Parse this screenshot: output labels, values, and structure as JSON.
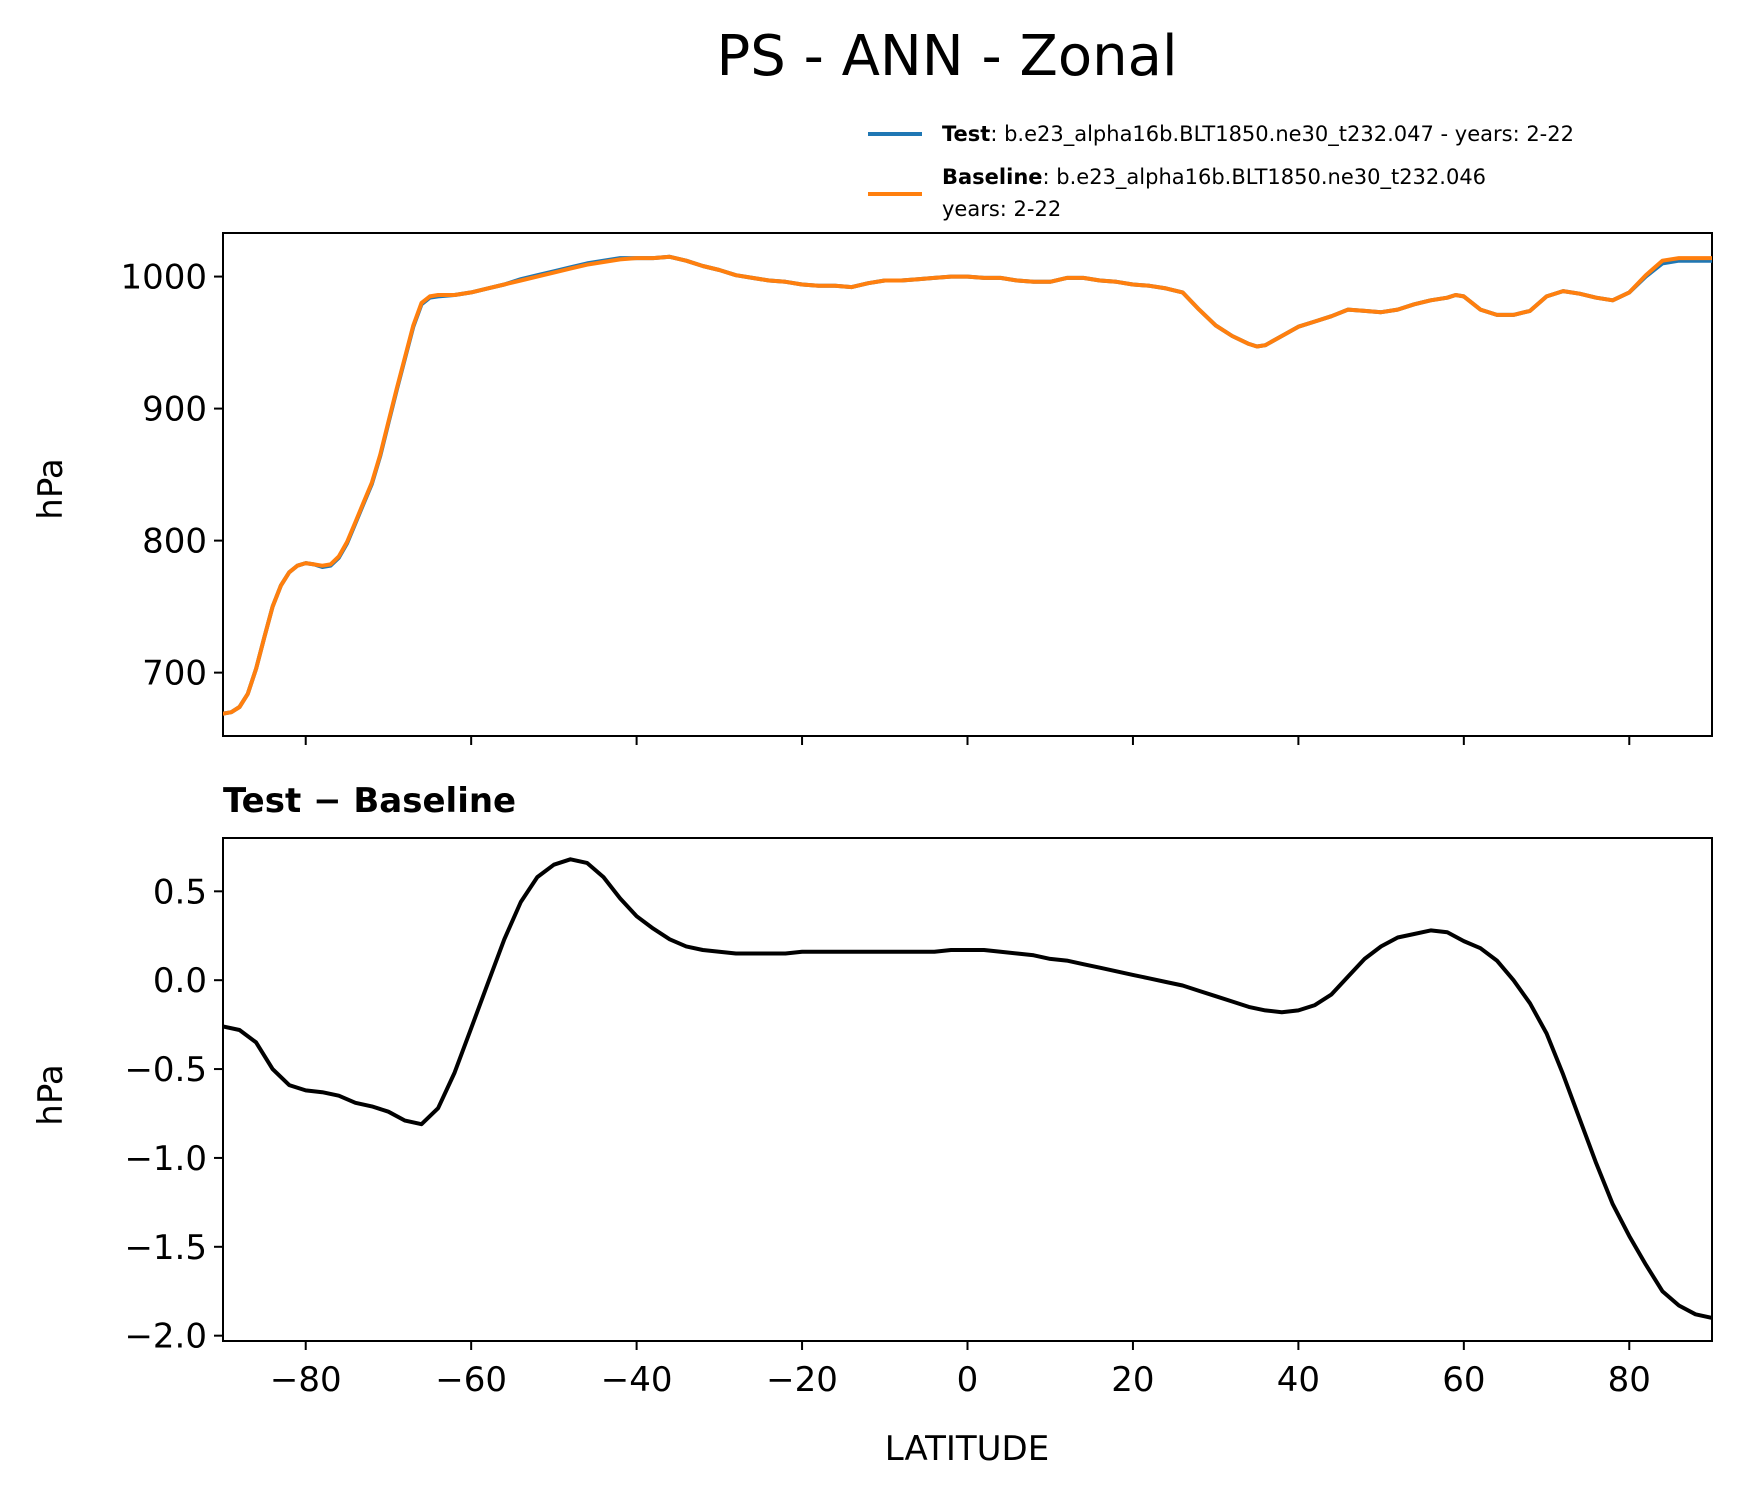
{
  "figure": {
    "title": "PS - ANN - Zonal",
    "colors": {
      "test": "#1f77b4",
      "baseline": "#ff7f0e",
      "diff": "#000000"
    }
  },
  "legend": {
    "test_label": "Test",
    "test_text": ": b.e23_alpha16b.BLT1850.ne30_t232.047 - years: 2-22",
    "baseline_label": "Baseline",
    "baseline_text": ": b.e23_alpha16b.BLT1850.ne30_t232.046",
    "baseline_text_line2": "years: 2-22"
  },
  "chart_data": [
    {
      "type": "line",
      "title": "",
      "xlabel": "",
      "ylabel": "hPa",
      "xlim": [
        -90,
        90
      ],
      "ylim": [
        652,
        1033
      ],
      "yticks": [
        700,
        800,
        900,
        1000
      ],
      "ytick_labels": [
        "700",
        "800",
        "900",
        "1000"
      ],
      "xticks": [
        -80,
        -60,
        -40,
        -20,
        0,
        20,
        40,
        60,
        80
      ],
      "legend_position": "top-right, above axes",
      "grid": false,
      "x": [
        -90,
        -89,
        -88,
        -87,
        -86,
        -85,
        -84,
        -83,
        -82,
        -81,
        -80,
        -79,
        -78,
        -77,
        -76,
        -75,
        -74,
        -73,
        -72,
        -71,
        -70,
        -69,
        -68,
        -67,
        -66,
        -65,
        -64,
        -62,
        -60,
        -58,
        -56,
        -54,
        -52,
        -50,
        -48,
        -46,
        -44,
        -42,
        -40,
        -38,
        -36,
        -34,
        -32,
        -30,
        -28,
        -26,
        -24,
        -22,
        -20,
        -18,
        -16,
        -14,
        -12,
        -10,
        -8,
        -6,
        -4,
        -2,
        0,
        2,
        4,
        6,
        8,
        10,
        12,
        14,
        16,
        18,
        20,
        22,
        24,
        26,
        28,
        30,
        32,
        34,
        35,
        36,
        38,
        40,
        42,
        44,
        46,
        48,
        50,
        52,
        54,
        56,
        58,
        59,
        60,
        62,
        64,
        66,
        68,
        70,
        72,
        74,
        76,
        78,
        80,
        82,
        84,
        86,
        88,
        90
      ],
      "series": [
        {
          "name": "Test",
          "values": [
            669,
            670,
            674,
            684,
            703,
            727,
            750,
            766,
            776,
            781,
            783,
            782,
            780,
            781,
            787,
            798,
            813,
            828,
            843,
            864,
            889,
            914,
            938,
            962,
            979,
            984,
            985,
            986,
            988,
            991,
            994,
            998,
            1001,
            1004,
            1007,
            1010,
            1012,
            1014,
            1014,
            1014,
            1015,
            1012,
            1008,
            1005,
            1001,
            999,
            997,
            996,
            994,
            993,
            993,
            992,
            995,
            997,
            997,
            998,
            999,
            1000,
            1000,
            999,
            999,
            997,
            996,
            996,
            999,
            999,
            997,
            996,
            994,
            993,
            991,
            988,
            975,
            963,
            955,
            949,
            947,
            948,
            955,
            962,
            966,
            970,
            975,
            974,
            973,
            975,
            979,
            982,
            984,
            986,
            985,
            975,
            971,
            971,
            974,
            985,
            989,
            987,
            984,
            982,
            988,
            1000,
            1010,
            1012,
            1012,
            1012
          ]
        },
        {
          "name": "Baseline",
          "values": [
            669,
            670,
            674,
            684,
            703,
            727,
            750,
            766,
            776,
            781,
            783,
            782,
            781,
            782,
            788,
            799,
            814,
            829,
            844,
            865,
            890,
            915,
            939,
            963,
            980,
            985,
            986,
            986,
            988,
            991,
            994,
            997,
            1000,
            1003,
            1006,
            1009,
            1011,
            1013,
            1014,
            1014,
            1015,
            1012,
            1008,
            1005,
            1001,
            999,
            997,
            996,
            994,
            993,
            993,
            992,
            995,
            997,
            997,
            998,
            999,
            1000,
            1000,
            999,
            999,
            997,
            996,
            996,
            999,
            999,
            997,
            996,
            994,
            993,
            991,
            988,
            975,
            963,
            955,
            949,
            947,
            948,
            955,
            962,
            966,
            970,
            975,
            974,
            973,
            975,
            979,
            982,
            984,
            986,
            985,
            975,
            971,
            971,
            974,
            985,
            989,
            987,
            984,
            982,
            988,
            1001,
            1012,
            1014,
            1014,
            1014
          ]
        }
      ]
    },
    {
      "type": "line",
      "title": "Test − Baseline",
      "xlabel": "LATITUDE",
      "ylabel": "hPa",
      "xlim": [
        -90,
        90
      ],
      "ylim": [
        -2.03,
        0.8
      ],
      "yticks": [
        -2.0,
        -1.5,
        -1.0,
        -0.5,
        0.0,
        0.5
      ],
      "ytick_labels": [
        "−2.0",
        "−1.5",
        "−1.0",
        "−0.5",
        "0.0",
        "0.5"
      ],
      "xticks": [
        -80,
        -60,
        -40,
        -20,
        0,
        20,
        40,
        60,
        80
      ],
      "xtick_labels": [
        "−80",
        "−60",
        "−40",
        "−20",
        "0",
        "20",
        "40",
        "60",
        "80"
      ],
      "grid": false,
      "x": [
        -90,
        -88,
        -86,
        -84,
        -82,
        -80,
        -78,
        -76,
        -74,
        -72,
        -70,
        -68,
        -66,
        -64,
        -62,
        -60,
        -58,
        -56,
        -54,
        -52,
        -50,
        -48,
        -46,
        -44,
        -42,
        -40,
        -38,
        -36,
        -34,
        -32,
        -30,
        -28,
        -26,
        -24,
        -22,
        -20,
        -18,
        -16,
        -14,
        -12,
        -10,
        -8,
        -6,
        -4,
        -2,
        0,
        2,
        4,
        6,
        8,
        10,
        12,
        14,
        16,
        18,
        20,
        22,
        24,
        26,
        28,
        30,
        32,
        34,
        36,
        38,
        40,
        42,
        44,
        46,
        48,
        50,
        52,
        54,
        56,
        58,
        60,
        62,
        64,
        66,
        68,
        70,
        72,
        74,
        76,
        78,
        80,
        82,
        84,
        86,
        88,
        90
      ],
      "series": [
        {
          "name": "",
          "values": [
            -0.26,
            -0.28,
            -0.35,
            -0.5,
            -0.59,
            -0.62,
            -0.63,
            -0.65,
            -0.69,
            -0.71,
            -0.74,
            -0.79,
            -0.81,
            -0.72,
            -0.52,
            -0.27,
            -0.02,
            0.23,
            0.44,
            0.58,
            0.65,
            0.68,
            0.66,
            0.58,
            0.46,
            0.36,
            0.29,
            0.23,
            0.19,
            0.17,
            0.16,
            0.15,
            0.15,
            0.15,
            0.15,
            0.16,
            0.16,
            0.16,
            0.16,
            0.16,
            0.16,
            0.16,
            0.16,
            0.16,
            0.17,
            0.17,
            0.17,
            0.16,
            0.15,
            0.14,
            0.12,
            0.11,
            0.09,
            0.07,
            0.05,
            0.03,
            0.01,
            -0.01,
            -0.03,
            -0.06,
            -0.09,
            -0.12,
            -0.15,
            -0.17,
            -0.18,
            -0.17,
            -0.14,
            -0.08,
            0.02,
            0.12,
            0.19,
            0.24,
            0.26,
            0.28,
            0.27,
            0.22,
            0.18,
            0.11,
            0.0,
            -0.13,
            -0.3,
            -0.53,
            -0.78,
            -1.03,
            -1.26,
            -1.44,
            -1.6,
            -1.75,
            -1.83,
            -1.88,
            -1.9
          ]
        }
      ]
    }
  ]
}
